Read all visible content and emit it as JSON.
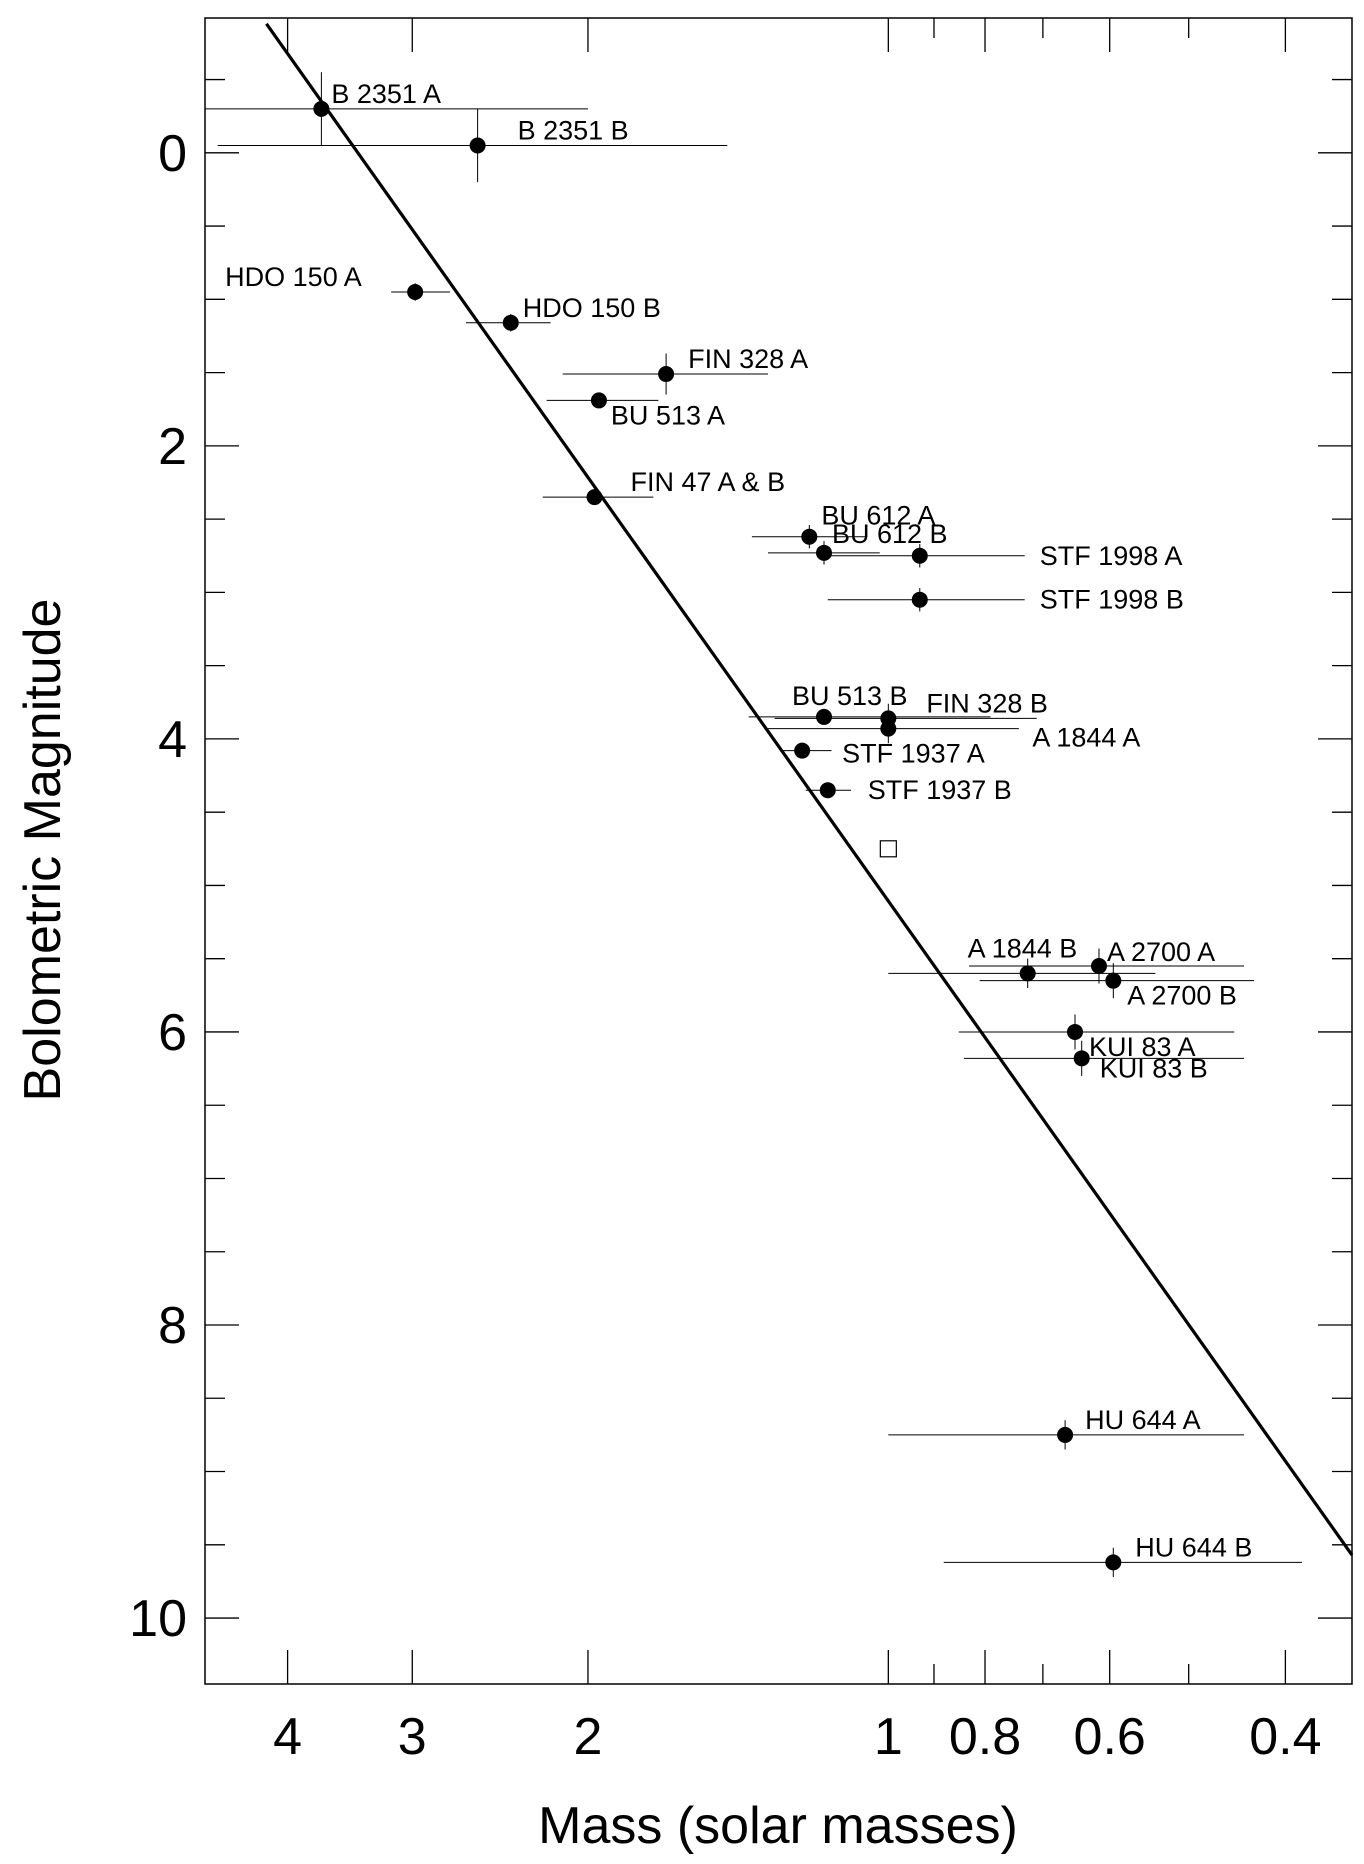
{
  "chart_data": {
    "type": "scatter",
    "xlabel": "Mass (solar masses)",
    "ylabel": "Bolometric Magnitude",
    "x_scale": "log",
    "y_inverted": true,
    "xlim": [
      4.84,
      0.343
    ],
    "ylim": [
      -0.92,
      10.45
    ],
    "x_ticks_major": [
      4,
      3,
      2,
      1,
      0.8,
      0.6,
      0.4
    ],
    "x_tick_labels": [
      "4",
      "3",
      "2",
      "1",
      "0.8",
      "0.6",
      "0.4"
    ],
    "x_ticks_minor": [
      0.9,
      0.7,
      0.5
    ],
    "y_ticks_major": [
      0,
      2,
      4,
      6,
      8,
      10
    ],
    "y_tick_labels": [
      "0",
      "2",
      "4",
      "6",
      "8",
      "10"
    ],
    "y_ticks_minor": [
      -0.5,
      0.5,
      1,
      1.5,
      2.5,
      3,
      3.5,
      4.5,
      5,
      5.5,
      6.5,
      7,
      7.5,
      8.5,
      9,
      9.5
    ],
    "fit_line": {
      "x": [
        4.2,
        0.343
      ],
      "y": [
        -0.88,
        9.57
      ]
    },
    "sun_marker": {
      "mass": 1.0,
      "mag": 4.75,
      "symbol": "open-square"
    },
    "points": [
      {
        "name": "B  2351 A",
        "mass": 3.7,
        "mag": -0.3,
        "xerr": [
          4.84,
          2.0
        ],
        "yerr": 0.25
      },
      {
        "name": "B  2351 B",
        "mass": 2.58,
        "mag": -0.05,
        "xerr": [
          4.7,
          1.45
        ],
        "yerr": 0.25
      },
      {
        "name": "HDO 150 A",
        "mass": 2.98,
        "mag": 0.95,
        "xerr": [
          3.15,
          2.75
        ],
        "yerr": 0.06
      },
      {
        "name": "HDO 150 B",
        "mass": 2.39,
        "mag": 1.16,
        "xerr": [
          2.65,
          2.18
        ],
        "yerr": 0.06
      },
      {
        "name": "FIN 328 A",
        "mass": 1.67,
        "mag": 1.51,
        "xerr": [
          2.12,
          1.32
        ],
        "yerr": 0.14
      },
      {
        "name": "BU 513 A",
        "mass": 1.95,
        "mag": 1.69,
        "xerr": [
          2.2,
          1.7
        ],
        "yerr": 0.05
      },
      {
        "name": "FIN 47 A & B",
        "mass": 1.97,
        "mag": 2.35,
        "xerr": [
          2.22,
          1.72
        ],
        "yerr": 0.05
      },
      {
        "name": "BU 612 A",
        "mass": 1.2,
        "mag": 2.62,
        "xerr": [
          1.37,
          1.05
        ],
        "yerr": 0.08
      },
      {
        "name": "BU 612 B",
        "mass": 1.16,
        "mag": 2.73,
        "xerr": [
          1.32,
          1.02
        ],
        "yerr": 0.08
      },
      {
        "name": "STF 1998 A",
        "mass": 0.93,
        "mag": 2.75,
        "xerr": [
          1.17,
          0.73
        ],
        "yerr": 0.08
      },
      {
        "name": "STF 1998 B",
        "mass": 0.93,
        "mag": 3.05,
        "xerr": [
          1.15,
          0.73
        ],
        "yerr": 0.08
      },
      {
        "name": "BU 513 B",
        "mass": 1.16,
        "mag": 3.85,
        "xerr": [
          1.38,
          0.79
        ],
        "yerr": 0.05
      },
      {
        "name": "FIN 328 B",
        "mass": 1.0,
        "mag": 3.86,
        "xerr": [
          1.3,
          0.71
        ],
        "yerr": 0.1
      },
      {
        "name": "A 1844 A",
        "mass": 1.0,
        "mag": 3.93,
        "xerr": [
          1.32,
          0.74
        ],
        "yerr": 0.1
      },
      {
        "name": "STF 1937 A",
        "mass": 1.22,
        "mag": 4.08,
        "xerr": [
          1.28,
          1.14
        ],
        "yerr": 0.05
      },
      {
        "name": "STF 1937 B",
        "mass": 1.15,
        "mag": 4.35,
        "xerr": [
          1.21,
          1.09
        ],
        "yerr": 0.05
      },
      {
        "name": "A 1844 B",
        "mass": 0.725,
        "mag": 5.6,
        "xerr": [
          1.0,
          0.54
        ],
        "yerr": 0.1
      },
      {
        "name": "A 2700 A",
        "mass": 0.615,
        "mag": 5.55,
        "xerr": [
          0.83,
          0.44
        ],
        "yerr": 0.12
      },
      {
        "name": "A 2700 B",
        "mass": 0.595,
        "mag": 5.65,
        "xerr": [
          0.81,
          0.43
        ],
        "yerr": 0.12
      },
      {
        "name": "KUI 83 A",
        "mass": 0.65,
        "mag": 6.0,
        "xerr": [
          0.85,
          0.45
        ],
        "yerr": 0.12
      },
      {
        "name": "KUI 83 B",
        "mass": 0.64,
        "mag": 6.18,
        "xerr": [
          0.84,
          0.44
        ],
        "yerr": 0.12
      },
      {
        "name": "HU 644 A",
        "mass": 0.665,
        "mag": 8.75,
        "xerr": [
          1.0,
          0.44
        ],
        "yerr": 0.1
      },
      {
        "name": "HU 644 B",
        "mass": 0.595,
        "mag": 9.62,
        "xerr": [
          0.88,
          0.385
        ],
        "yerr": 0.1
      }
    ]
  }
}
